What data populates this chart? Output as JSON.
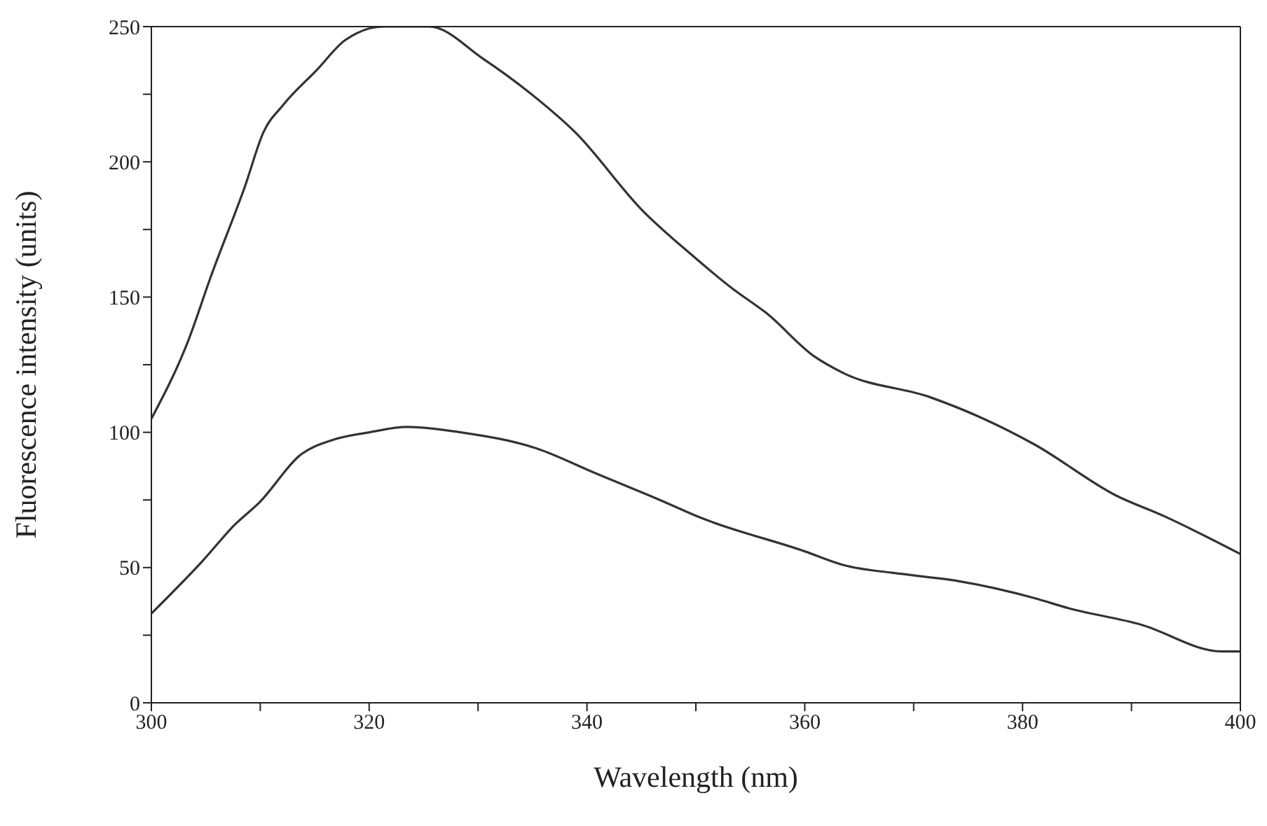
{
  "chart_data": {
    "type": "line",
    "xlabel": "Wavelength (nm)",
    "ylabel": "Fluorescence intensity (units)",
    "xlim": [
      300,
      400
    ],
    "ylim": [
      0,
      250
    ],
    "xticks": [
      300,
      {
        "value": 310,
        "label": null
      },
      320,
      {
        "value": 330,
        "label": null
      },
      340,
      {
        "value": 350,
        "label": null
      },
      360,
      {
        "value": 370,
        "label": null
      },
      380,
      {
        "value": 390,
        "label": null
      },
      400
    ],
    "yticks": [
      0,
      {
        "value": 25,
        "label": null
      },
      50,
      {
        "value": 75,
        "label": null
      },
      100,
      {
        "value": 125,
        "label": null
      },
      150,
      {
        "value": 175,
        "label": null
      },
      200,
      {
        "value": 225,
        "label": null
      },
      250
    ],
    "marker": "none",
    "line_style": "solid",
    "series": [
      {
        "color": "#333333",
        "x": [
          300,
          303.3,
          305.5,
          308.6,
          310.3,
          312.1,
          315.2,
          317.8,
          321.3,
          325.5,
          330.5,
          334.9,
          338.9,
          345.1,
          349.5,
          353.4,
          356.5,
          360.9,
          363.5,
          371.5,
          376.7,
          381.1,
          388.6,
          393,
          400
        ],
        "values": [
          105,
          133,
          158,
          191,
          211,
          221,
          234,
          245,
          250,
          250,
          238,
          225,
          211,
          182,
          166,
          153,
          144,
          128,
          122,
          113,
          104.5,
          95.5,
          76.6,
          69,
          55
        ]
      },
      {
        "color": "#333333",
        "x": [
          300,
          304.6,
          307.7,
          309.9,
          313.8,
          316.5,
          320,
          323.5,
          328.4,
          335.4,
          340.7,
          346.8,
          350.4,
          360,
          363.5,
          368.8,
          374.1,
          381.1,
          384.2,
          390.8,
          398.3,
          400
        ],
        "values": [
          33,
          52,
          66,
          74,
          92,
          97,
          100,
          102,
          100,
          94,
          85,
          74.8,
          68.5,
          56,
          51,
          47.7,
          45,
          38.7,
          35,
          29,
          19,
          19
        ]
      }
    ]
  }
}
